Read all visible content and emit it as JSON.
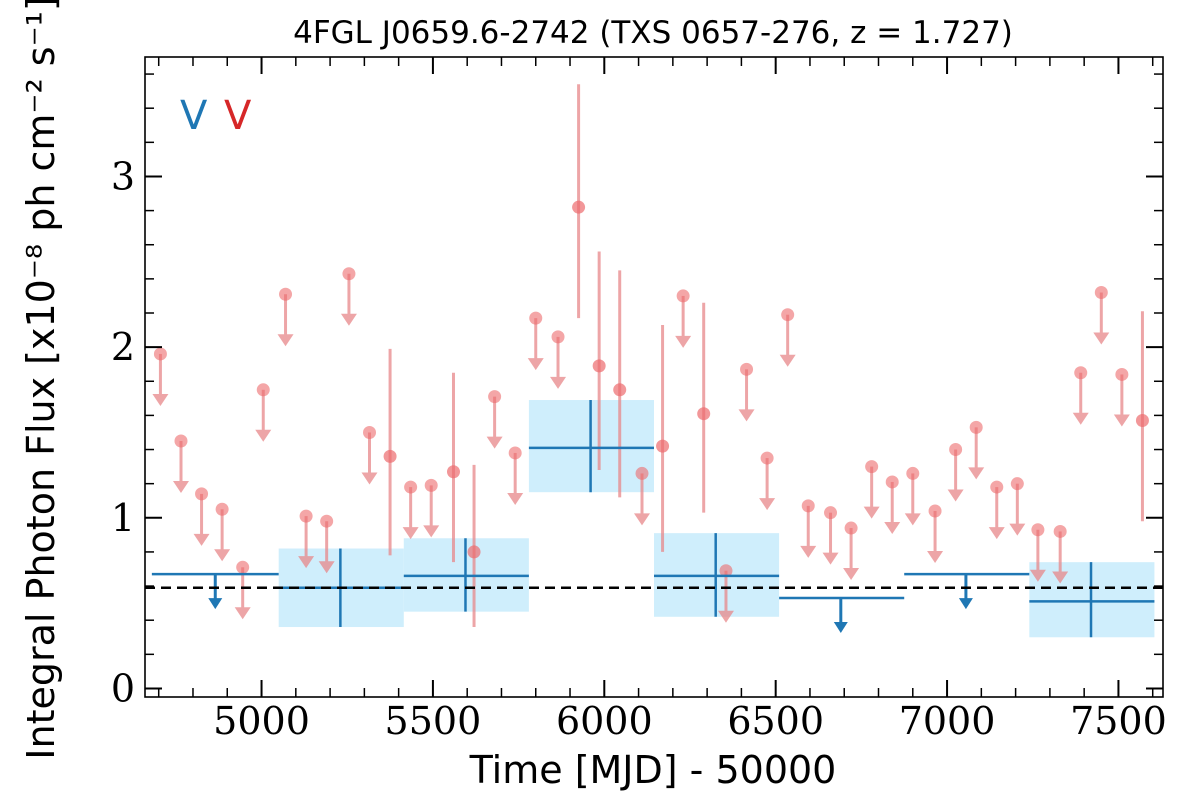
{
  "chart_data": {
    "type": "scatter",
    "title": "4FGL J0659.6-2742 (TXS 0657-276, z = 1.727)",
    "xlabel": "Time [MJD] - 50000",
    "ylabel": "Integral Photon Flux [x10⁻⁸ ph cm⁻² s⁻¹]",
    "xlim": [
      4660,
      7630
    ],
    "ylim": [
      -0.05,
      3.7
    ],
    "x_ticks": [
      5000,
      5500,
      6000,
      6500,
      7000,
      7500
    ],
    "y_ticks": [
      0,
      1,
      2,
      3
    ],
    "reference_line_y": 0.59,
    "legend": {
      "placement": "top-left",
      "entries": [
        {
          "label": "V",
          "color": "#1f77b4"
        },
        {
          "label": "V",
          "color": "#d62728"
        }
      ]
    },
    "colors": {
      "coarse": "#1f77b4",
      "coarse_band": "#cfeefc",
      "fine": "#e8888a",
      "fine_point": "#ec6b6d"
    },
    "coarse_bins": [
      {
        "x": 4865,
        "x_lo": 4680,
        "x_hi": 5050,
        "y": 0.67,
        "upper_limit": true
      },
      {
        "x": 5230,
        "x_lo": 5050,
        "x_hi": 5415,
        "y": 0.59,
        "y_lo": 0.36,
        "y_hi": 0.82,
        "upper_limit": false
      },
      {
        "x": 5595,
        "x_lo": 5415,
        "x_hi": 5780,
        "y": 0.66,
        "y_lo": 0.45,
        "y_hi": 0.88,
        "upper_limit": false
      },
      {
        "x": 5960,
        "x_lo": 5780,
        "x_hi": 6145,
        "y": 1.41,
        "y_lo": 1.15,
        "y_hi": 1.69,
        "upper_limit": false
      },
      {
        "x": 6325,
        "x_lo": 6145,
        "x_hi": 6510,
        "y": 0.66,
        "y_lo": 0.42,
        "y_hi": 0.91,
        "upper_limit": false
      },
      {
        "x": 6690,
        "x_lo": 6510,
        "x_hi": 6875,
        "y": 0.53,
        "upper_limit": true
      },
      {
        "x": 7055,
        "x_lo": 6875,
        "x_hi": 7240,
        "y": 0.67,
        "upper_limit": true
      },
      {
        "x": 7420,
        "x_lo": 7240,
        "x_hi": 7605,
        "y": 0.51,
        "y_lo": 0.3,
        "y_hi": 0.74,
        "upper_limit": false
      }
    ],
    "fine_points": [
      {
        "x": 4705,
        "y": 1.96,
        "upper_limit": true
      },
      {
        "x": 4765,
        "y": 1.45,
        "upper_limit": true
      },
      {
        "x": 4825,
        "y": 1.14,
        "upper_limit": true
      },
      {
        "x": 4885,
        "y": 1.05,
        "upper_limit": true
      },
      {
        "x": 4945,
        "y": 0.71,
        "upper_limit": true
      },
      {
        "x": 5005,
        "y": 1.75,
        "upper_limit": true
      },
      {
        "x": 5070,
        "y": 2.31,
        "upper_limit": true
      },
      {
        "x": 5130,
        "y": 1.01,
        "upper_limit": true
      },
      {
        "x": 5190,
        "y": 0.98,
        "upper_limit": true
      },
      {
        "x": 5255,
        "y": 2.43,
        "upper_limit": true
      },
      {
        "x": 5315,
        "y": 1.5,
        "upper_limit": true
      },
      {
        "x": 5375,
        "y": 1.36,
        "y_lo": 0.78,
        "y_hi": 1.99,
        "upper_limit": false
      },
      {
        "x": 5435,
        "y": 1.18,
        "upper_limit": true
      },
      {
        "x": 5495,
        "y": 1.19,
        "upper_limit": true
      },
      {
        "x": 5560,
        "y": 1.27,
        "y_lo": 0.74,
        "y_hi": 1.85,
        "upper_limit": false
      },
      {
        "x": 5620,
        "y": 0.8,
        "y_lo": 0.36,
        "y_hi": 1.31,
        "upper_limit": false
      },
      {
        "x": 5680,
        "y": 1.71,
        "upper_limit": true
      },
      {
        "x": 5740,
        "y": 1.38,
        "upper_limit": true
      },
      {
        "x": 5800,
        "y": 2.17,
        "upper_limit": true
      },
      {
        "x": 5865,
        "y": 2.06,
        "upper_limit": true
      },
      {
        "x": 5925,
        "y": 2.82,
        "y_lo": 2.17,
        "y_hi": 3.54,
        "upper_limit": false
      },
      {
        "x": 5985,
        "y": 1.89,
        "y_lo": 1.28,
        "y_hi": 2.56,
        "upper_limit": false
      },
      {
        "x": 6045,
        "y": 1.75,
        "y_lo": 1.12,
        "y_hi": 2.45,
        "upper_limit": false
      },
      {
        "x": 6110,
        "y": 1.26,
        "upper_limit": true
      },
      {
        "x": 6170,
        "y": 1.42,
        "y_lo": 0.8,
        "y_hi": 2.13,
        "upper_limit": false
      },
      {
        "x": 6230,
        "y": 2.3,
        "upper_limit": true
      },
      {
        "x": 6290,
        "y": 1.61,
        "y_lo": 1.03,
        "y_hi": 2.26,
        "upper_limit": false
      },
      {
        "x": 6355,
        "y": 0.69,
        "upper_limit": true
      },
      {
        "x": 6415,
        "y": 1.87,
        "upper_limit": true
      },
      {
        "x": 6475,
        "y": 1.35,
        "upper_limit": true
      },
      {
        "x": 6535,
        "y": 2.19,
        "upper_limit": true
      },
      {
        "x": 6595,
        "y": 1.07,
        "upper_limit": true
      },
      {
        "x": 6660,
        "y": 1.03,
        "upper_limit": true
      },
      {
        "x": 6720,
        "y": 0.94,
        "upper_limit": true
      },
      {
        "x": 6780,
        "y": 1.3,
        "upper_limit": true
      },
      {
        "x": 6840,
        "y": 1.21,
        "upper_limit": true
      },
      {
        "x": 6900,
        "y": 1.26,
        "upper_limit": true
      },
      {
        "x": 6965,
        "y": 1.04,
        "upper_limit": true
      },
      {
        "x": 7025,
        "y": 1.4,
        "upper_limit": true
      },
      {
        "x": 7085,
        "y": 1.53,
        "upper_limit": true
      },
      {
        "x": 7145,
        "y": 1.18,
        "upper_limit": true
      },
      {
        "x": 7205,
        "y": 1.2,
        "upper_limit": true
      },
      {
        "x": 7265,
        "y": 0.93,
        "upper_limit": true
      },
      {
        "x": 7330,
        "y": 0.92,
        "upper_limit": true
      },
      {
        "x": 7390,
        "y": 1.85,
        "upper_limit": true
      },
      {
        "x": 7450,
        "y": 2.32,
        "upper_limit": true
      },
      {
        "x": 7510,
        "y": 1.84,
        "upper_limit": true
      },
      {
        "x": 7570,
        "y": 1.57,
        "y_lo": 0.98,
        "y_hi": 2.21,
        "upper_limit": false
      }
    ]
  }
}
